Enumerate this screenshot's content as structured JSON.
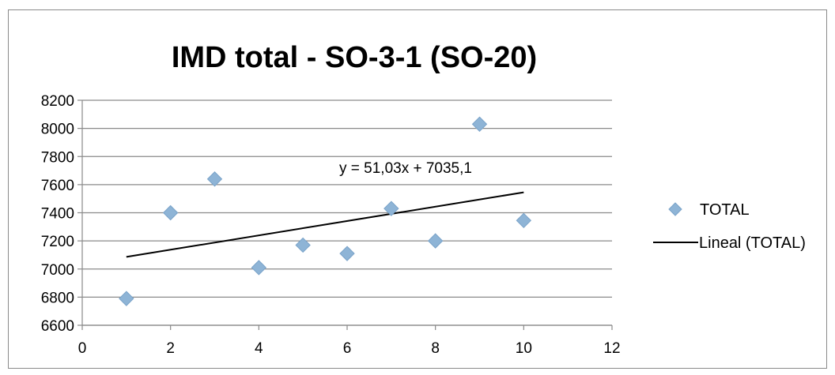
{
  "chart_data": {
    "type": "scatter",
    "title": "IMD total - SO-3-1 (SO-20)",
    "xlabel": "",
    "ylabel": "",
    "xlim": [
      0,
      12
    ],
    "ylim": [
      6600,
      8200
    ],
    "xticks": [
      "0",
      "2",
      "4",
      "6",
      "8",
      "10",
      "12"
    ],
    "yticks": [
      "6600",
      "6800",
      "7000",
      "7200",
      "7400",
      "7600",
      "7800",
      "8000",
      "8200"
    ],
    "grid": "horizontal",
    "legend_position": "right",
    "series": [
      {
        "name": "TOTAL",
        "marker": "diamond",
        "color": "#8eb4d6",
        "x": [
          1,
          2,
          3,
          4,
          5,
          6,
          7,
          8,
          9,
          10
        ],
        "y": [
          6790,
          7400,
          7640,
          7010,
          7170,
          7110,
          7430,
          7200,
          8030,
          7345
        ]
      }
    ],
    "trendline": {
      "name": "Lineal (TOTAL)",
      "type": "linear",
      "color": "#000000",
      "slope": 51.03,
      "intercept": 7035.1,
      "x_range": [
        1,
        10
      ],
      "equation": "y = 51,03x + 7035,1"
    }
  }
}
